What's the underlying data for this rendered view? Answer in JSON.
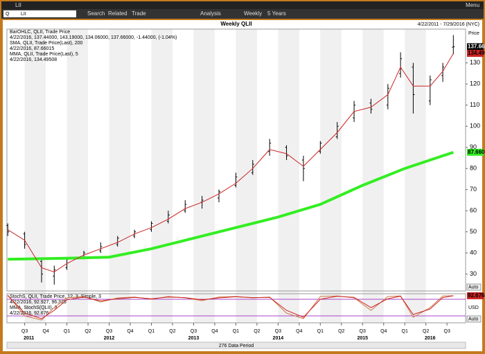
{
  "toolbar": {
    "symbol": "LII",
    "menu": "Menu",
    "search_prefix": "Q",
    "search": "Search",
    "related": "Related",
    "trade": "Trade",
    "analysis": "Analysis",
    "interval": "Weekly",
    "range": "5 Years"
  },
  "chart_data": [
    {
      "type": "ohlc",
      "title": "Weekly QLII",
      "date_range": "4/22/2011 - 7/29/2016 (NYC)",
      "axis_label": "Price",
      "auto": "Auto",
      "legend": [
        {
          "text": "BarOHLC, QLII, Trade Price",
          "color": "#000000"
        },
        {
          "text": "4/22/2016, 137.44000, 143.19000, 134.06000, 137.66000, -1.44000, (-1.04%)",
          "color": "#000000"
        },
        {
          "text": "SMA, QLII, Trade Price(Last), 200",
          "color": "#22cc22"
        },
        {
          "text": "4/22/2016, 87.66015",
          "color": "#22cc22"
        },
        {
          "text": "MMA, QLII, Trade Price(Last), 5",
          "color": "#cc0000"
        },
        {
          "text": "4/22/2016, 134.49508",
          "color": "#cc0000"
        }
      ],
      "xlim": [
        2011.29,
        2016.72
      ],
      "ylim": [
        22,
        146
      ],
      "yticks": [
        30,
        40,
        50,
        60,
        70,
        80,
        90,
        100,
        110,
        120,
        130
      ],
      "x": [
        2011.3,
        2011.5,
        2011.7,
        2011.85,
        2012.0,
        2012.2,
        2012.4,
        2012.6,
        2012.8,
        2013.0,
        2013.2,
        2013.4,
        2013.6,
        2013.8,
        2014.0,
        2014.2,
        2014.4,
        2014.6,
        2014.8,
        2015.0,
        2015.2,
        2015.4,
        2015.6,
        2015.8,
        2015.95,
        2016.1,
        2016.3,
        2016.45,
        2016.575
      ],
      "open": [
        53,
        49,
        36,
        29,
        33,
        38,
        41,
        44,
        48,
        51,
        55,
        60,
        64,
        66,
        72,
        78,
        88,
        90,
        84,
        88,
        95,
        104,
        111,
        110,
        125,
        128,
        112,
        124,
        137.44
      ],
      "high": [
        54,
        50,
        37,
        34,
        38,
        41,
        45,
        48,
        51,
        55,
        60,
        65,
        67,
        70,
        78,
        84,
        94,
        91,
        86,
        93,
        102,
        112,
        113,
        120,
        135,
        130,
        124,
        130,
        143.19
      ],
      "low": [
        48,
        42,
        26,
        25,
        32,
        37,
        40,
        43,
        47,
        50,
        54,
        59,
        61,
        64,
        71,
        77,
        86,
        84,
        74,
        87,
        94,
        102,
        106,
        108,
        123,
        106,
        110,
        121,
        134.06
      ],
      "close": [
        50,
        44,
        30,
        32,
        37,
        40,
        43,
        47,
        50,
        54,
        58,
        63,
        65,
        69,
        76,
        82,
        92,
        86,
        80,
        92,
        100,
        110,
        108,
        118,
        132,
        115,
        122,
        128,
        137.66
      ],
      "bar_color": "#000000",
      "last_label": "137.660",
      "series": [
        {
          "name": "SMA",
          "color": "#33ee22",
          "width": 4,
          "last_label": "87.66015",
          "x": [
            2011.3,
            2012.0,
            2012.5,
            2013.0,
            2013.5,
            2014.0,
            2014.5,
            2015.0,
            2015.5,
            2016.0,
            2016.575
          ],
          "values": [
            37,
            37.5,
            38,
            42,
            47,
            52,
            57,
            63,
            72,
            80,
            87.66
          ]
        },
        {
          "name": "MMA",
          "color": "#cc2222",
          "width": 1,
          "last_label": "134.495",
          "x": [
            2011.3,
            2011.5,
            2011.7,
            2011.85,
            2012.0,
            2012.2,
            2012.4,
            2012.6,
            2012.8,
            2013.0,
            2013.2,
            2013.4,
            2013.6,
            2013.8,
            2014.0,
            2014.2,
            2014.4,
            2014.6,
            2014.8,
            2015.0,
            2015.2,
            2015.4,
            2015.6,
            2015.8,
            2015.95,
            2016.1,
            2016.3,
            2016.45,
            2016.575
          ],
          "values": [
            51,
            46,
            33,
            31,
            35,
            39,
            42,
            45,
            49,
            52,
            56,
            61,
            64,
            68,
            73,
            80,
            89,
            87,
            81,
            89,
            97,
            107,
            109,
            115,
            128,
            119,
            119,
            126,
            134.495
          ]
        }
      ]
    },
    {
      "type": "line",
      "axis_label": "USD",
      "auto": "Auto",
      "legend": [
        {
          "text": "StochS, QLII, Trade Price, 12, 3, Simple, 3",
          "color": "#aa22aa"
        },
        {
          "text": "4/22/2016, 92.927, 96.315",
          "color": "#aa22aa"
        },
        {
          "text": "MMA, StochS(QLII), 3",
          "color": "#cc2222"
        },
        {
          "text": "4/22/2016, 92.676",
          "color": "#cc2222"
        }
      ],
      "xlim": [
        2011.29,
        2016.72
      ],
      "ylim": [
        -5,
        100
      ],
      "hlines": [
        20,
        80
      ],
      "hline_color": "#aa44cc",
      "xticks": [
        {
          "value": 2011.5,
          "label": "Q3"
        },
        {
          "value": 2011.75,
          "label": "Q4"
        },
        {
          "value": 2012.0,
          "label": "Q1"
        },
        {
          "value": 2012.25,
          "label": "Q2"
        },
        {
          "value": 2012.5,
          "label": "Q3"
        },
        {
          "value": 2012.75,
          "label": "Q4"
        },
        {
          "value": 2013.0,
          "label": "Q1"
        },
        {
          "value": 2013.25,
          "label": "Q2"
        },
        {
          "value": 2013.5,
          "label": "Q3"
        },
        {
          "value": 2013.75,
          "label": "Q4"
        },
        {
          "value": 2014.0,
          "label": "Q1"
        },
        {
          "value": 2014.25,
          "label": "Q2"
        },
        {
          "value": 2014.5,
          "label": "Q3"
        },
        {
          "value": 2014.75,
          "label": "Q4"
        },
        {
          "value": 2015.0,
          "label": "Q1"
        },
        {
          "value": 2015.25,
          "label": "Q2"
        },
        {
          "value": 2015.5,
          "label": "Q3"
        },
        {
          "value": 2015.75,
          "label": "Q4"
        },
        {
          "value": 2016.0,
          "label": "Q1"
        },
        {
          "value": 2016.25,
          "label": "Q2"
        },
        {
          "value": 2016.5,
          "label": "Q3"
        }
      ],
      "year_ticks": [
        {
          "value": 2011.55,
          "label": "2011"
        },
        {
          "value": 2012.5,
          "label": "2012"
        },
        {
          "value": 2013.5,
          "label": "2013"
        },
        {
          "value": 2014.5,
          "label": "2014"
        },
        {
          "value": 2015.5,
          "label": "2015"
        },
        {
          "value": 2016.3,
          "label": "2016"
        }
      ],
      "footer": "276 Data Period",
      "series": [
        {
          "name": "StochS",
          "color": "#cc7744",
          "width": 1,
          "x": [
            2011.3,
            2011.5,
            2011.7,
            2011.85,
            2012.0,
            2012.2,
            2012.4,
            2012.6,
            2012.8,
            2013.0,
            2013.2,
            2013.4,
            2013.6,
            2013.8,
            2014.0,
            2014.2,
            2014.4,
            2014.6,
            2014.8,
            2015.0,
            2015.2,
            2015.4,
            2015.6,
            2015.8,
            2015.95,
            2016.1,
            2016.3,
            2016.45,
            2016.575
          ],
          "values": [
            95,
            20,
            5,
            50,
            85,
            90,
            70,
            85,
            88,
            80,
            90,
            85,
            75,
            88,
            90,
            85,
            88,
            30,
            10,
            90,
            92,
            85,
            40,
            90,
            92,
            15,
            50,
            92,
            92.927
          ]
        },
        {
          "name": "MMA",
          "color": "#cc2222",
          "width": 1,
          "last_label": "92.676",
          "x": [
            2011.3,
            2011.5,
            2011.7,
            2011.85,
            2012.0,
            2012.2,
            2012.4,
            2012.6,
            2012.8,
            2013.0,
            2013.2,
            2013.4,
            2013.6,
            2013.8,
            2014.0,
            2014.2,
            2014.4,
            2014.6,
            2014.8,
            2015.0,
            2015.2,
            2015.4,
            2015.6,
            2015.8,
            2015.95,
            2016.1,
            2016.3,
            2016.45,
            2016.575
          ],
          "values": [
            93,
            30,
            10,
            40,
            78,
            88,
            74,
            82,
            87,
            82,
            88,
            86,
            78,
            85,
            89,
            86,
            87,
            40,
            15,
            80,
            91,
            87,
            50,
            82,
            91,
            25,
            45,
            86,
            92.676
          ]
        }
      ]
    }
  ]
}
